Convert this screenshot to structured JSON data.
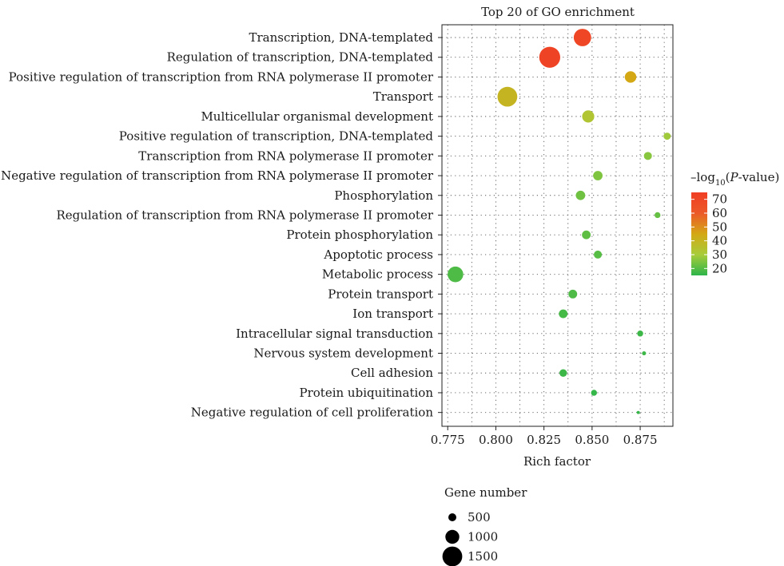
{
  "chart_data": {
    "type": "scatter",
    "title": "Top 20 of GO enrichment",
    "xlabel": "Rich factor",
    "ylabel": "",
    "xlim": [
      0.772,
      0.892
    ],
    "xticks": [
      0.775,
      0.8,
      0.825,
      0.85,
      0.875
    ],
    "xtick_labels": [
      "0.775",
      "0.800",
      "0.825",
      "0.850",
      "0.875"
    ],
    "grid": true,
    "color_legend": {
      "title_prefix": "–log",
      "title_sub": "10",
      "title_open": "(",
      "title_italic": "P",
      "title_suffix": "-value)",
      "range": [
        15,
        75
      ],
      "ticks": [
        70,
        60,
        50,
        40,
        30,
        20
      ],
      "tick_labels": [
        "70",
        "60",
        "50",
        "40",
        "30",
        "20"
      ],
      "colors": [
        "#2db54a",
        "#a8cc3a",
        "#d4a815",
        "#ec5a28",
        "#f03d24"
      ]
    },
    "size_legend": {
      "title": "Gene number",
      "values": [
        500,
        1000,
        1500
      ],
      "labels": [
        "500",
        "1000",
        "1500"
      ]
    },
    "terms": [
      {
        "term": "Transcription, DNA-templated",
        "x": 0.845,
        "gene_number": 1300,
        "neg_log10_p": 70
      },
      {
        "term": "Regulation of transcription, DNA-templated",
        "x": 0.828,
        "gene_number": 1600,
        "neg_log10_p": 72
      },
      {
        "term": "Positive regulation of transcription from RNA polymerase II promoter",
        "x": 0.87,
        "gene_number": 800,
        "neg_log10_p": 45
      },
      {
        "term": "Transport",
        "x": 0.806,
        "gene_number": 1500,
        "neg_log10_p": 40
      },
      {
        "term": "Multicellular organismal development",
        "x": 0.848,
        "gene_number": 850,
        "neg_log10_p": 33
      },
      {
        "term": "Positive regulation of transcription, DNA-templated",
        "x": 0.889,
        "gene_number": 430,
        "neg_log10_p": 29
      },
      {
        "term": "Transcription from RNA polymerase II promoter",
        "x": 0.879,
        "gene_number": 500,
        "neg_log10_p": 26
      },
      {
        "term": "Negative regulation of transcription from RNA polymerase II promoter",
        "x": 0.853,
        "gene_number": 620,
        "neg_log10_p": 25
      },
      {
        "term": "Phosphorylation",
        "x": 0.844,
        "gene_number": 620,
        "neg_log10_p": 23
      },
      {
        "term": "Regulation of transcription from RNA polymerase II promoter",
        "x": 0.884,
        "gene_number": 320,
        "neg_log10_p": 22
      },
      {
        "term": "Protein phosphorylation",
        "x": 0.847,
        "gene_number": 560,
        "neg_log10_p": 21
      },
      {
        "term": "Apoptotic process",
        "x": 0.853,
        "gene_number": 500,
        "neg_log10_p": 20
      },
      {
        "term": "Metabolic process",
        "x": 0.779,
        "gene_number": 1150,
        "neg_log10_p": 19
      },
      {
        "term": "Protein transport",
        "x": 0.84,
        "gene_number": 560,
        "neg_log10_p": 19
      },
      {
        "term": "Ion transport",
        "x": 0.835,
        "gene_number": 560,
        "neg_log10_p": 18
      },
      {
        "term": "Intracellular signal transduction",
        "x": 0.875,
        "gene_number": 330,
        "neg_log10_p": 17
      },
      {
        "term": "Nervous system development",
        "x": 0.877,
        "gene_number": 170,
        "neg_log10_p": 17
      },
      {
        "term": "Cell adhesion",
        "x": 0.835,
        "gene_number": 460,
        "neg_log10_p": 17
      },
      {
        "term": "Protein ubiquitination",
        "x": 0.851,
        "gene_number": 330,
        "neg_log10_p": 16
      },
      {
        "term": "Negative regulation of cell proliferation",
        "x": 0.874,
        "gene_number": 90,
        "neg_log10_p": 16
      }
    ]
  }
}
